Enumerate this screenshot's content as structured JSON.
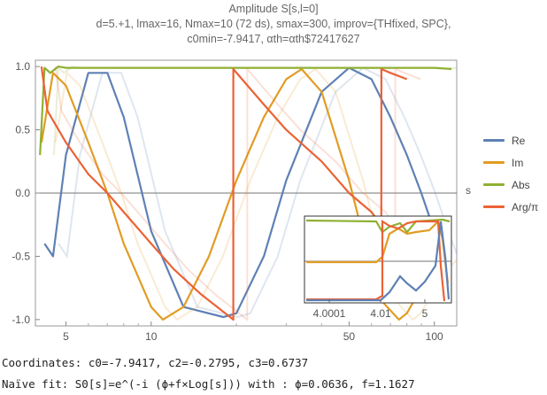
{
  "title": {
    "line1": "Amplitude S[s,l=0]",
    "line2": "d=5.+1, lmax=16, Nmax=10 (72 ds), smax=300, improv={THfixed, SPC},",
    "line3": "c0min=-7.9417, αth=αth$72417627"
  },
  "footer": {
    "coords": "Coordinates: c0=-7.9417, c2=-0.2795, c3=0.6737",
    "fit": "Naïve fit: S0[s]=e^(-i (ϕ+f×Log[s])) with : ϕ=0.0636, f=1.1627"
  },
  "colors": {
    "re": "#5e81b5",
    "im": "#e19c24",
    "abs": "#8fb032",
    "arg": "#eb6235"
  },
  "chart_data": {
    "type": "line",
    "title": "Amplitude S[s,l=0]",
    "xlabel": "s",
    "ylabel": "",
    "xscale": "log",
    "xlim": [
      3.9,
      120
    ],
    "ylim": [
      -1.05,
      1.05
    ],
    "x_ticks": [
      "5",
      "10",
      "50",
      "100"
    ],
    "y_ticks": [
      "1.0",
      "0.5",
      "0.0",
      "-0.5",
      "-1.0"
    ],
    "grid": false,
    "legend": "right",
    "fit": {
      "phi": 0.0636,
      "f": 1.1627
    },
    "series": [
      {
        "name": "Re",
        "x": [
          4.2,
          4.5,
          5,
          6,
          7,
          8,
          10,
          13,
          18,
          20,
          25,
          30,
          40,
          50,
          60,
          70,
          80,
          90,
          100,
          110
        ],
        "y": [
          -0.4,
          -0.5,
          0.3,
          0.95,
          0.95,
          0.6,
          -0.3,
          -0.9,
          -0.98,
          -0.95,
          -0.5,
          0.1,
          0.8,
          0.99,
          0.9,
          0.6,
          0.3,
          0.0,
          -0.3,
          -0.55
        ]
      },
      {
        "name": "Im",
        "x": [
          4.1,
          4.5,
          5,
          6,
          7,
          8,
          10,
          11,
          13,
          16,
          20,
          25,
          30,
          34,
          40,
          50,
          60,
          65,
          75,
          80,
          90,
          100,
          110
        ],
        "y": [
          0.4,
          0.95,
          0.85,
          0.4,
          0.0,
          -0.4,
          -0.9,
          -1.0,
          -0.9,
          -0.5,
          0.1,
          0.6,
          0.9,
          0.98,
          0.8,
          0.1,
          -0.6,
          -0.85,
          -1.0,
          -0.95,
          -0.75,
          -0.6,
          -0.5
        ]
      },
      {
        "name": "Abs",
        "x": [
          4.05,
          4.2,
          4.4,
          4.7,
          5,
          6,
          10,
          20,
          50,
          60,
          65,
          70,
          80,
          100,
          115
        ],
        "y": [
          0.3,
          0.99,
          0.95,
          1.0,
          0.99,
          0.99,
          0.99,
          0.99,
          0.99,
          0.99,
          0.99,
          0.99,
          0.99,
          0.99,
          0.98
        ]
      },
      {
        "name": "Arg/π",
        "x": [
          4.1,
          4.3,
          5,
          6,
          7,
          8,
          10,
          12,
          15,
          19.5,
          19.51,
          25,
          30,
          40,
          50,
          60,
          65,
          65.01,
          70,
          80
        ],
        "y": [
          1.0,
          0.65,
          0.4,
          0.15,
          0.0,
          -0.15,
          -0.4,
          -0.6,
          -0.8,
          -1.0,
          0.98,
          0.7,
          0.5,
          0.25,
          0.0,
          -0.15,
          -0.25,
          0.98,
          0.95,
          0.9
        ]
      }
    ],
    "inset": {
      "x_ticks": [
        "4.0001",
        "4.01",
        "5"
      ]
    },
    "legend_entries": [
      "Re",
      "Im",
      "Abs",
      "Arg/π"
    ]
  }
}
